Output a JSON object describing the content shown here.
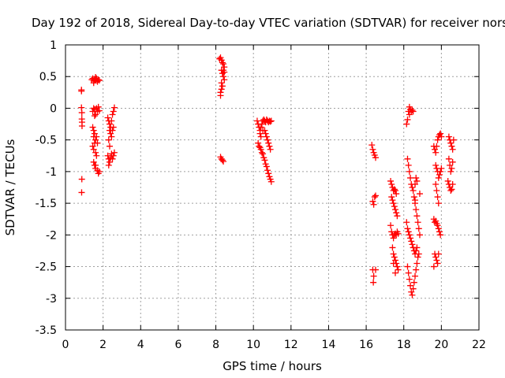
{
  "chart_data": {
    "type": "scatter",
    "title": "Day 192 of 2018, Sidereal Day-to-day VTEC variation (SDTVAR) for receiver nors",
    "xlabel": "GPS time / hours",
    "ylabel": "SDTVAR / TECUs",
    "xlim": [
      0,
      22
    ],
    "ylim": [
      -3.5,
      1
    ],
    "xticks": [
      0,
      2,
      4,
      6,
      8,
      10,
      12,
      14,
      16,
      18,
      20,
      22
    ],
    "yticks": [
      1,
      0.5,
      0,
      -0.5,
      -1,
      -1.5,
      -2,
      -2.5,
      -3,
      -3.5
    ],
    "ytick_labels": [
      "1",
      "0.5",
      "0",
      "-0.5",
      "-1",
      "-1.5",
      "-2",
      "-2.5",
      "-3",
      "-3.5"
    ],
    "grid": true,
    "marker": "+",
    "marker_color": "#ff0000",
    "series": [
      {
        "name": "SDTVAR",
        "points": [
          [
            0.85,
            0.29
          ],
          [
            0.85,
            0.27
          ],
          [
            0.85,
            0.01
          ],
          [
            0.87,
            -0.07
          ],
          [
            0.87,
            -0.17
          ],
          [
            0.88,
            -0.22
          ],
          [
            0.88,
            -0.28
          ],
          [
            0.87,
            -1.12
          ],
          [
            0.86,
            -1.33
          ],
          [
            1.4,
            0.45
          ],
          [
            1.45,
            0.47
          ],
          [
            1.5,
            0.43
          ],
          [
            1.55,
            0.46
          ],
          [
            1.6,
            0.44
          ],
          [
            1.65,
            0.47
          ],
          [
            1.7,
            0.42
          ],
          [
            1.75,
            0.45
          ],
          [
            1.8,
            0.44
          ],
          [
            1.5,
            0.4
          ],
          [
            1.6,
            0.49
          ],
          [
            1.45,
            -0.05
          ],
          [
            1.5,
            0.0
          ],
          [
            1.55,
            -0.02
          ],
          [
            1.6,
            -0.1
          ],
          [
            1.65,
            0.0
          ],
          [
            1.7,
            -0.05
          ],
          [
            1.75,
            0.02
          ],
          [
            1.8,
            -0.04
          ],
          [
            1.55,
            -0.12
          ],
          [
            1.45,
            -0.3
          ],
          [
            1.5,
            -0.35
          ],
          [
            1.55,
            -0.4
          ],
          [
            1.5,
            -0.45
          ],
          [
            1.6,
            -0.5
          ],
          [
            1.55,
            -0.55
          ],
          [
            1.45,
            -0.6
          ],
          [
            1.5,
            -0.65
          ],
          [
            1.6,
            -0.7
          ],
          [
            1.65,
            -0.75
          ],
          [
            1.7,
            -0.55
          ],
          [
            1.65,
            -0.45
          ],
          [
            1.5,
            -0.85
          ],
          [
            1.55,
            -0.9
          ],
          [
            1.6,
            -0.95
          ],
          [
            1.7,
            -0.98
          ],
          [
            1.75,
            -1.03
          ],
          [
            1.8,
            -1.0
          ],
          [
            1.6,
            -0.9
          ],
          [
            2.25,
            -0.15
          ],
          [
            2.3,
            -0.2
          ],
          [
            2.35,
            -0.25
          ],
          [
            2.4,
            -0.3
          ],
          [
            2.45,
            -0.2
          ],
          [
            2.5,
            -0.1
          ],
          [
            2.55,
            -0.05
          ],
          [
            2.6,
            0.01
          ],
          [
            2.35,
            -0.35
          ],
          [
            2.4,
            -0.4
          ],
          [
            2.45,
            -0.45
          ],
          [
            2.5,
            -0.35
          ],
          [
            2.55,
            -0.3
          ],
          [
            2.3,
            -0.5
          ],
          [
            2.35,
            -0.6
          ],
          [
            2.25,
            -0.75
          ],
          [
            2.3,
            -0.8
          ],
          [
            2.35,
            -0.85
          ],
          [
            2.4,
            -0.78
          ],
          [
            2.45,
            -0.72
          ],
          [
            2.5,
            -0.8
          ],
          [
            2.55,
            -0.75
          ],
          [
            2.6,
            -0.7
          ],
          [
            2.3,
            -0.9
          ],
          [
            8.2,
            0.78
          ],
          [
            8.25,
            0.8
          ],
          [
            8.3,
            0.76
          ],
          [
            8.35,
            0.72
          ],
          [
            8.4,
            0.7
          ],
          [
            8.45,
            0.65
          ],
          [
            8.3,
            0.6
          ],
          [
            8.35,
            0.55
          ],
          [
            8.4,
            0.5
          ],
          [
            8.45,
            0.45
          ],
          [
            8.3,
            0.4
          ],
          [
            8.35,
            0.35
          ],
          [
            8.3,
            0.3
          ],
          [
            8.25,
            0.25
          ],
          [
            8.25,
            0.2
          ],
          [
            8.4,
            0.6
          ],
          [
            8.45,
            0.57
          ],
          [
            8.25,
            -0.77
          ],
          [
            8.3,
            -0.8
          ],
          [
            8.35,
            -0.82
          ],
          [
            8.4,
            -0.84
          ],
          [
            10.2,
            -0.2
          ],
          [
            10.25,
            -0.25
          ],
          [
            10.3,
            -0.3
          ],
          [
            10.35,
            -0.35
          ],
          [
            10.4,
            -0.3
          ],
          [
            10.45,
            -0.25
          ],
          [
            10.5,
            -0.2
          ],
          [
            10.55,
            -0.18
          ],
          [
            10.6,
            -0.2
          ],
          [
            10.65,
            -0.22
          ],
          [
            10.7,
            -0.18
          ],
          [
            10.75,
            -0.2
          ],
          [
            10.8,
            -0.22
          ],
          [
            10.85,
            -0.2
          ],
          [
            10.9,
            -0.21
          ],
          [
            10.95,
            -0.2
          ],
          [
            10.35,
            -0.4
          ],
          [
            10.4,
            -0.45
          ],
          [
            10.5,
            -0.35
          ],
          [
            10.25,
            -0.55
          ],
          [
            10.3,
            -0.6
          ],
          [
            10.35,
            -0.62
          ],
          [
            10.4,
            -0.65
          ],
          [
            10.45,
            -0.7
          ],
          [
            10.5,
            -0.72
          ],
          [
            10.55,
            -0.78
          ],
          [
            10.6,
            -0.82
          ],
          [
            10.65,
            -0.88
          ],
          [
            10.7,
            -0.92
          ],
          [
            10.75,
            -0.98
          ],
          [
            10.8,
            -1.03
          ],
          [
            10.85,
            -1.08
          ],
          [
            10.9,
            -1.12
          ],
          [
            10.95,
            -1.16
          ],
          [
            10.6,
            -0.35
          ],
          [
            10.65,
            -0.4
          ],
          [
            10.7,
            -0.45
          ],
          [
            10.75,
            -0.5
          ],
          [
            10.8,
            -0.55
          ],
          [
            10.85,
            -0.6
          ],
          [
            10.9,
            -0.65
          ],
          [
            16.3,
            -0.58
          ],
          [
            16.35,
            -0.65
          ],
          [
            16.4,
            -0.7
          ],
          [
            16.45,
            -0.74
          ],
          [
            16.5,
            -0.78
          ],
          [
            16.35,
            -1.47
          ],
          [
            16.4,
            -1.52
          ],
          [
            16.45,
            -1.4
          ],
          [
            16.5,
            -1.38
          ],
          [
            16.35,
            -2.55
          ],
          [
            16.4,
            -2.65
          ],
          [
            16.38,
            -2.75
          ],
          [
            16.5,
            -2.55
          ],
          [
            17.3,
            -1.15
          ],
          [
            17.35,
            -1.2
          ],
          [
            17.4,
            -1.25
          ],
          [
            17.45,
            -1.3
          ],
          [
            17.5,
            -1.28
          ],
          [
            17.55,
            -1.3
          ],
          [
            17.6,
            -1.35
          ],
          [
            17.35,
            -1.4
          ],
          [
            17.4,
            -1.45
          ],
          [
            17.45,
            -1.5
          ],
          [
            17.5,
            -1.55
          ],
          [
            17.55,
            -1.6
          ],
          [
            17.6,
            -1.65
          ],
          [
            17.65,
            -1.7
          ],
          [
            17.3,
            -1.85
          ],
          [
            17.35,
            -1.95
          ],
          [
            17.4,
            -2.0
          ],
          [
            17.45,
            -2.05
          ],
          [
            17.5,
            -2.0
          ],
          [
            17.55,
            -1.98
          ],
          [
            17.6,
            -2.0
          ],
          [
            17.65,
            -1.95
          ],
          [
            17.7,
            -1.98
          ],
          [
            17.4,
            -2.2
          ],
          [
            17.45,
            -2.3
          ],
          [
            17.5,
            -2.35
          ],
          [
            17.55,
            -2.4
          ],
          [
            17.6,
            -2.45
          ],
          [
            17.65,
            -2.5
          ],
          [
            17.7,
            -2.55
          ],
          [
            17.55,
            -2.6
          ],
          [
            17.45,
            -2.45
          ],
          [
            18.15,
            -0.25
          ],
          [
            18.2,
            -0.18
          ],
          [
            18.25,
            -0.05
          ],
          [
            18.3,
            0.02
          ],
          [
            18.35,
            -0.02
          ],
          [
            18.4,
            -0.05
          ],
          [
            18.45,
            -0.03
          ],
          [
            18.5,
            -0.05
          ],
          [
            18.3,
            -0.1
          ],
          [
            18.2,
            -0.8
          ],
          [
            18.25,
            -0.9
          ],
          [
            18.3,
            -1.0
          ],
          [
            18.35,
            -1.1
          ],
          [
            18.4,
            -1.2
          ],
          [
            18.45,
            -1.25
          ],
          [
            18.5,
            -1.3
          ],
          [
            18.55,
            -1.4
          ],
          [
            18.6,
            -1.45
          ],
          [
            18.15,
            -1.8
          ],
          [
            18.2,
            -1.9
          ],
          [
            18.25,
            -1.95
          ],
          [
            18.3,
            -2.0
          ],
          [
            18.35,
            -2.05
          ],
          [
            18.4,
            -2.1
          ],
          [
            18.45,
            -2.15
          ],
          [
            18.5,
            -2.2
          ],
          [
            18.55,
            -2.25
          ],
          [
            18.6,
            -2.3
          ],
          [
            18.65,
            -2.25
          ],
          [
            18.7,
            -2.2
          ],
          [
            18.2,
            -2.5
          ],
          [
            18.25,
            -2.6
          ],
          [
            18.3,
            -2.7
          ],
          [
            18.35,
            -2.8
          ],
          [
            18.4,
            -2.9
          ],
          [
            18.45,
            -2.95
          ],
          [
            18.5,
            -2.85
          ],
          [
            18.55,
            -2.75
          ],
          [
            18.6,
            -2.65
          ],
          [
            18.65,
            -2.55
          ],
          [
            18.7,
            -2.45
          ],
          [
            18.75,
            -2.35
          ],
          [
            18.8,
            -2.3
          ],
          [
            18.6,
            -1.5
          ],
          [
            18.65,
            -1.6
          ],
          [
            18.7,
            -1.7
          ],
          [
            18.75,
            -1.8
          ],
          [
            18.8,
            -1.9
          ],
          [
            18.85,
            -2.0
          ],
          [
            18.6,
            -1.2
          ],
          [
            18.65,
            -1.1
          ],
          [
            18.7,
            -1.15
          ],
          [
            18.85,
            -1.35
          ],
          [
            19.6,
            -0.6
          ],
          [
            19.65,
            -0.65
          ],
          [
            19.7,
            -0.7
          ],
          [
            19.75,
            -0.6
          ],
          [
            19.8,
            -0.5
          ],
          [
            19.85,
            -0.45
          ],
          [
            19.9,
            -0.42
          ],
          [
            19.95,
            -0.4
          ],
          [
            20.0,
            -0.45
          ],
          [
            19.7,
            -0.9
          ],
          [
            19.75,
            -0.95
          ],
          [
            19.8,
            -1.0
          ],
          [
            19.85,
            -1.1
          ],
          [
            19.9,
            -1.05
          ],
          [
            19.95,
            -1.0
          ],
          [
            20.0,
            -0.95
          ],
          [
            19.7,
            -1.2
          ],
          [
            19.75,
            -1.3
          ],
          [
            19.8,
            -1.4
          ],
          [
            19.85,
            -1.5
          ],
          [
            19.6,
            -1.75
          ],
          [
            19.65,
            -1.8
          ],
          [
            19.7,
            -1.78
          ],
          [
            19.75,
            -1.82
          ],
          [
            19.8,
            -1.85
          ],
          [
            19.85,
            -1.9
          ],
          [
            19.9,
            -1.95
          ],
          [
            19.95,
            -2.0
          ],
          [
            19.65,
            -2.3
          ],
          [
            19.7,
            -2.35
          ],
          [
            19.75,
            -2.4
          ],
          [
            19.8,
            -2.45
          ],
          [
            19.85,
            -2.3
          ],
          [
            19.6,
            -2.5
          ],
          [
            20.4,
            -0.45
          ],
          [
            20.45,
            -0.5
          ],
          [
            20.5,
            -0.55
          ],
          [
            20.55,
            -0.6
          ],
          [
            20.6,
            -0.65
          ],
          [
            20.65,
            -0.5
          ],
          [
            20.4,
            -0.8
          ],
          [
            20.45,
            -0.9
          ],
          [
            20.5,
            -1.0
          ],
          [
            20.55,
            -0.95
          ],
          [
            20.6,
            -0.85
          ],
          [
            20.35,
            -1.15
          ],
          [
            20.4,
            -1.2
          ],
          [
            20.45,
            -1.25
          ],
          [
            20.5,
            -1.3
          ],
          [
            20.55,
            -1.28
          ],
          [
            20.6,
            -1.2
          ]
        ]
      }
    ]
  }
}
